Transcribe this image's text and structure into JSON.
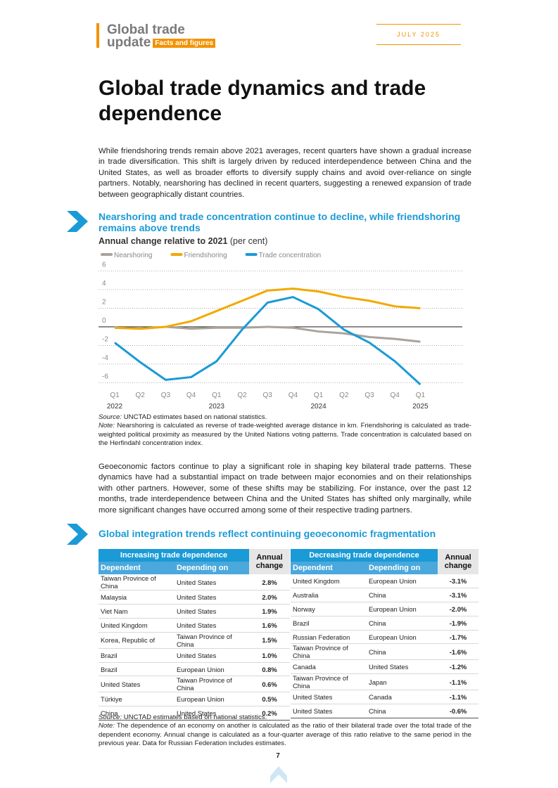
{
  "header": {
    "title_line1": "Global trade",
    "title_line2": "update",
    "tag": "Facts and figures",
    "date": "JULY 2025"
  },
  "title": "Global trade dynamics and trade dependence",
  "intro": "While friendshoring trends remain above 2021 averages, recent quarters have shown a gradual increase in trade diversification. This shift is largely driven by reduced interdependence between China and the United States, as well as broader efforts to diversify supply chains and avoid over-reliance on single partners. Notably, nearshoring has declined in recent quarters, suggesting a renewed expansion of trade between geographically distant countries.",
  "chart_data": {
    "type": "line",
    "title": "Nearshoring and trade concentration continue to decline, while friendshoring remains above trends",
    "subtitle": "Annual change relative to 2021",
    "subtitle_unit": "(per cent)",
    "categories": [
      "Q1",
      "Q2",
      "Q3",
      "Q4",
      "Q1",
      "Q2",
      "Q3",
      "Q4",
      "Q1",
      "Q2",
      "Q3",
      "Q4",
      "Q1"
    ],
    "years": [
      "2022",
      null,
      null,
      null,
      "2023",
      null,
      null,
      null,
      "2024",
      null,
      null,
      null,
      "2025"
    ],
    "series": [
      {
        "name": "Nearshoring",
        "color": "#aaa39a",
        "values": [
          -0.1,
          -0.2,
          0,
          -0.2,
          -0.1,
          -0.1,
          0,
          -0.1,
          -0.5,
          -0.7,
          -1.1,
          -1.3,
          -1.6
        ]
      },
      {
        "name": "Friendshoring",
        "color": "#f2a900",
        "values": [
          -0.1,
          -0.2,
          0,
          0.6,
          1.7,
          2.8,
          3.9,
          4.1,
          3.8,
          3.2,
          2.8,
          2.2,
          2.0
        ]
      },
      {
        "name": "Trade concentration",
        "color": "#1a9ad6",
        "values": [
          -1.7,
          -3.8,
          -5.7,
          -5.4,
          -3.7,
          -0.3,
          2.6,
          3.2,
          1.9,
          -0.3,
          -1.7,
          -3.7,
          -6.2
        ]
      }
    ],
    "ylim": [
      -6.5,
      6
    ],
    "yticks": [
      6,
      4,
      2,
      0,
      -2,
      -4,
      -6
    ],
    "grid": true,
    "legend": "top"
  },
  "chart_notes": {
    "source_label": "Source:",
    "source": "UNCTAD estimates based on national statistics.",
    "note_label": "Note:",
    "note": "Nearshoring is calculated as reverse of trade-weighted average distance in km. Friendshoring is calculated as trade-weighted political proximity as measured by the United Nations voting patterns. Trade concentration is calculated based on the Herfindahl concentration index."
  },
  "body": "Geoeconomic factors continue to play a significant role in shaping key bilateral trade patterns. These dynamics have had a substantial impact on trade between major economies and on their relationships with other partners. However, some of these shifts may be stabilizing. For instance, over the past 12 months, trade interdependence between China and the United States has shifted only marginally, while more significant changes have occurred among some of their respective trading partners.",
  "table_section_title": "Global integration trends reflect continuing geoeconomic fragmentation",
  "tables": [
    {
      "title": "Increasing trade dependence",
      "columns": [
        "Dependent",
        "Depending on",
        "Annual change"
      ],
      "rows": [
        [
          "Taiwan Province of China",
          "United States",
          "2.8%"
        ],
        [
          "Malaysia",
          "United States",
          "2.0%"
        ],
        [
          "Viet Nam",
          "United States",
          "1.9%"
        ],
        [
          "United Kingdom",
          "United States",
          "1.6%"
        ],
        [
          "Korea, Republic of",
          "Taiwan Province of China",
          "1.5%"
        ],
        [
          "Brazil",
          "United States",
          "1.0%"
        ],
        [
          "Brazil",
          "European Union",
          "0.8%"
        ],
        [
          "United States",
          "Taiwan Province of China",
          "0.6%"
        ],
        [
          "Türkiye",
          "European Union",
          "0.5%"
        ],
        [
          "China",
          "United States",
          "0.2%"
        ]
      ]
    },
    {
      "title": "Decreasing trade dependence",
      "columns": [
        "Dependent",
        "Depending on",
        "Annual change"
      ],
      "rows": [
        [
          "United Kingdom",
          "European Union",
          "-3.1%"
        ],
        [
          "Australia",
          "China",
          "-3.1%"
        ],
        [
          "Norway",
          "European Union",
          "-2.0%"
        ],
        [
          "Brazil",
          "China",
          "-1.9%"
        ],
        [
          "Russian Federation",
          "European Union",
          "-1.7%"
        ],
        [
          "Taiwan Province of China",
          "China",
          "-1.6%"
        ],
        [
          "Canada",
          "United States",
          "-1.2%"
        ],
        [
          "Taiwan Province of China",
          "Japan",
          "-1.1%"
        ],
        [
          "United States",
          "Canada",
          "-1.1%"
        ],
        [
          "United States",
          "China",
          "-0.6%"
        ]
      ]
    }
  ],
  "table_notes": {
    "source_label": "Source:",
    "source": "UNCTAD estimates based on national statistics.",
    "note_label": "Note:",
    "note": "The dependence of an economy on another is calculated as the ratio of their bilateral trade over the total trade of the dependent economy. Annual change is calculated as a four-quarter average of this ratio relative to the same period in the previous year. Data for Russian Federation includes estimates."
  },
  "page_number": "7"
}
